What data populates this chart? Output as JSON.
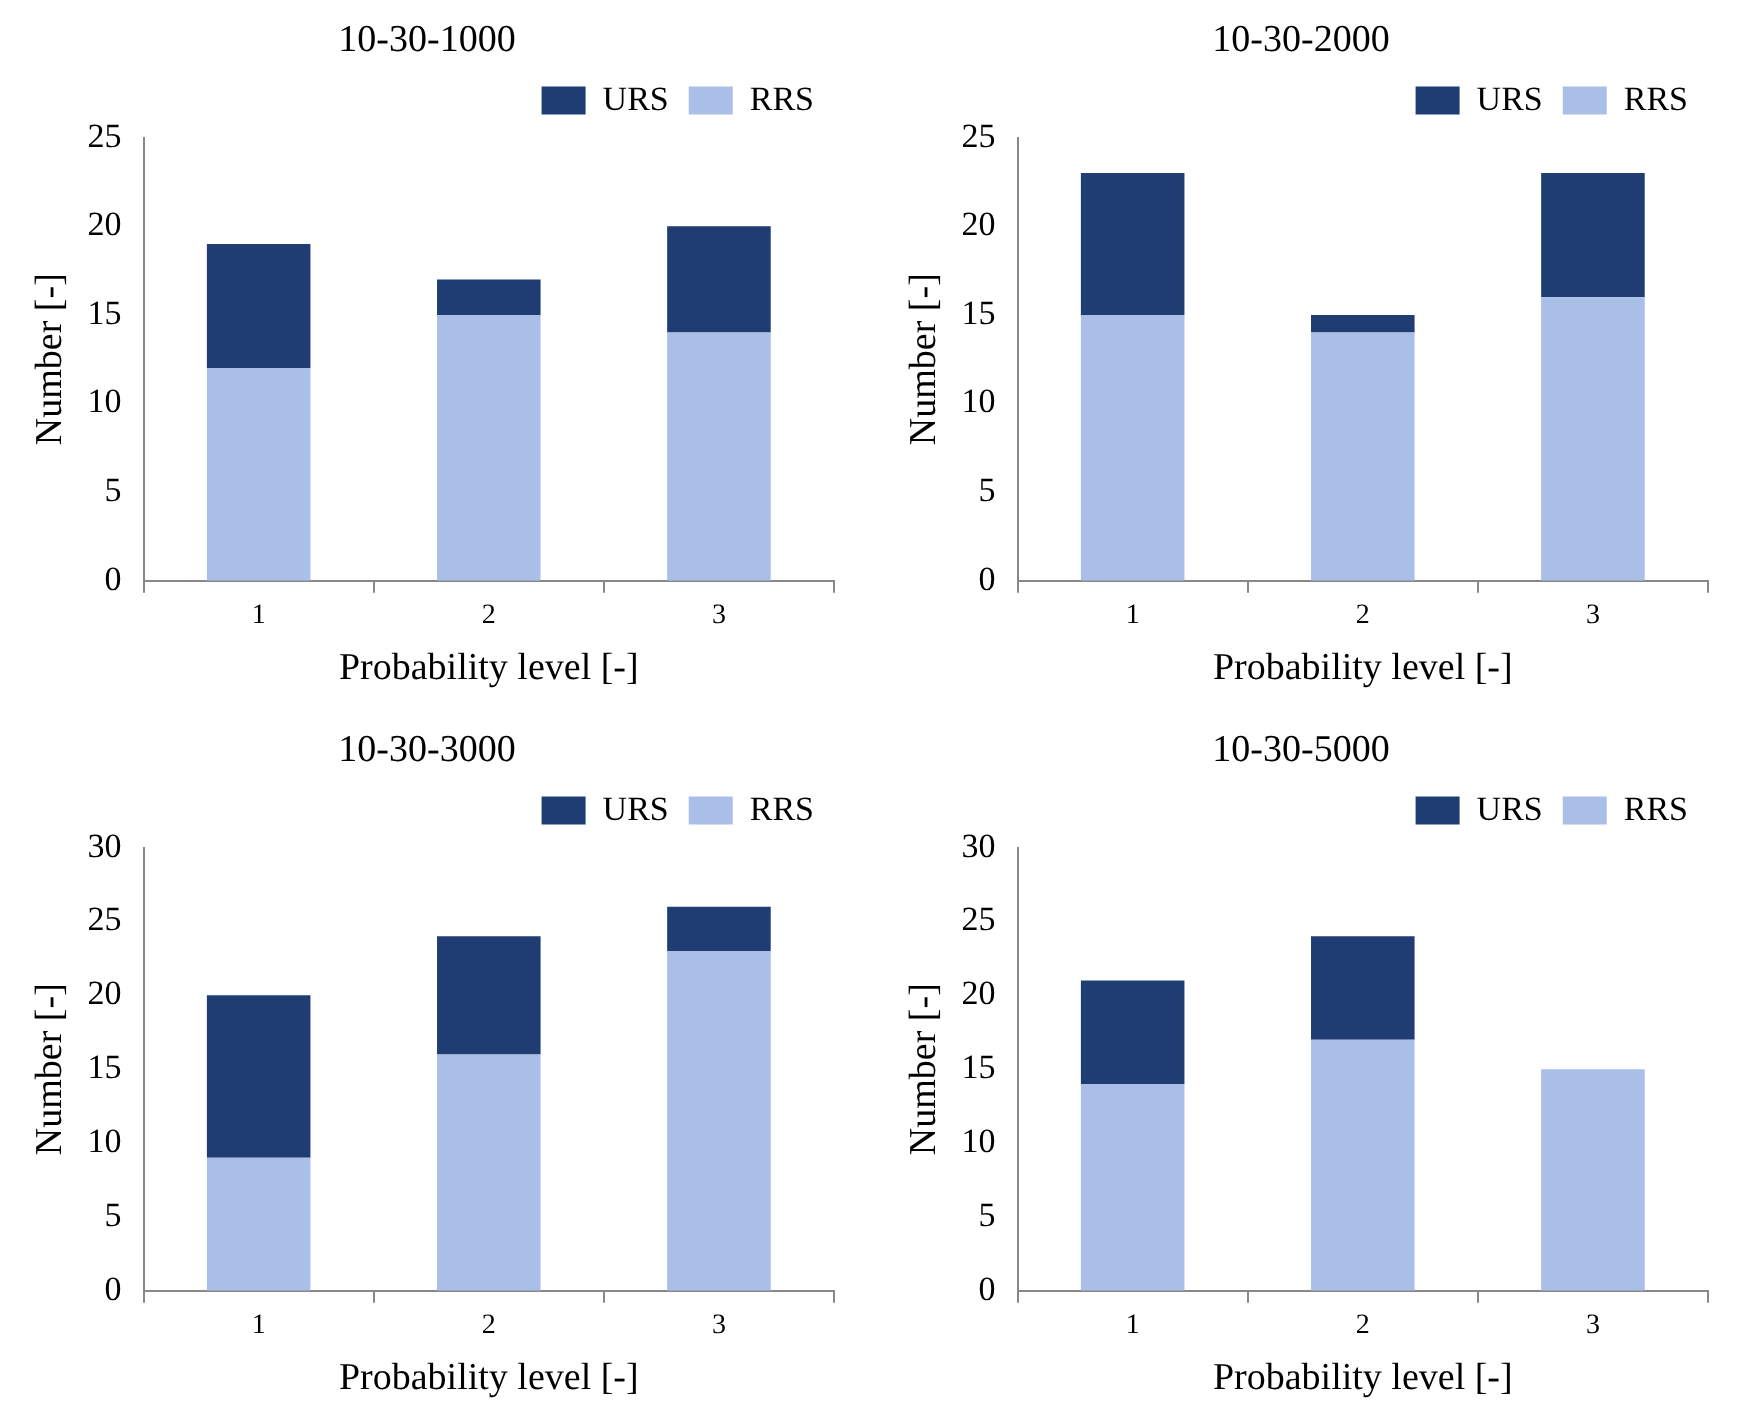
{
  "chart_data": [
    {
      "type": "bar",
      "title": "10-30-1000",
      "xlabel": "Probability level [-]",
      "ylabel": "Number [-]",
      "categories": [
        "1",
        "2",
        "3"
      ],
      "stacked": true,
      "ylim": [
        0,
        25
      ],
      "yticks": [
        0,
        5,
        10,
        15,
        20,
        25
      ],
      "legend": "top right",
      "series": [
        {
          "name": "RRS",
          "color": "#a9bfe8",
          "values": [
            12,
            15,
            14
          ]
        },
        {
          "name": "URS",
          "color": "#1f3d73",
          "values": [
            7,
            2,
            6
          ]
        }
      ]
    },
    {
      "type": "bar",
      "title": "10-30-2000",
      "xlabel": "Probability level [-]",
      "ylabel": "Number [-]",
      "categories": [
        "1",
        "2",
        "3"
      ],
      "stacked": true,
      "ylim": [
        0,
        25
      ],
      "yticks": [
        0,
        5,
        10,
        15,
        20,
        25
      ],
      "legend": "top right",
      "series": [
        {
          "name": "RRS",
          "color": "#a9bfe8",
          "values": [
            15,
            14,
            16
          ]
        },
        {
          "name": "URS",
          "color": "#1f3d73",
          "values": [
            8,
            1,
            7
          ]
        }
      ]
    },
    {
      "type": "bar",
      "title": "10-30-3000",
      "xlabel": "Probability level [-]",
      "ylabel": "Number [-]",
      "categories": [
        "1",
        "2",
        "3"
      ],
      "stacked": true,
      "ylim": [
        0,
        30
      ],
      "yticks": [
        0,
        5,
        10,
        15,
        20,
        25,
        30
      ],
      "legend": "top right",
      "series": [
        {
          "name": "RRS",
          "color": "#a9bfe8",
          "values": [
            9,
            16,
            23
          ]
        },
        {
          "name": "URS",
          "color": "#1f3d73",
          "values": [
            11,
            8,
            3
          ]
        }
      ]
    },
    {
      "type": "bar",
      "title": "10-30-5000",
      "xlabel": "Probability level [-]",
      "ylabel": "Number [-]",
      "categories": [
        "1",
        "2",
        "3"
      ],
      "stacked": true,
      "ylim": [
        0,
        30
      ],
      "yticks": [
        0,
        5,
        10,
        15,
        20,
        25,
        30
      ],
      "legend": "top right",
      "series": [
        {
          "name": "RRS",
          "color": "#a9bfe8",
          "values": [
            14,
            17,
            15
          ]
        },
        {
          "name": "URS",
          "color": "#1f3d73",
          "values": [
            7,
            7,
            0
          ]
        }
      ]
    }
  ]
}
